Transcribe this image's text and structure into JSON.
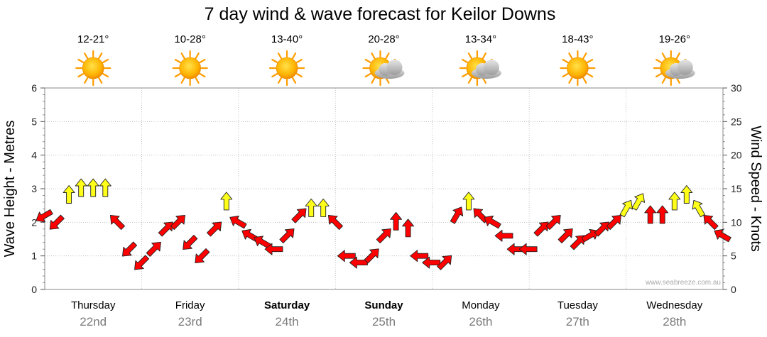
{
  "chart_data": {
    "type": "line",
    "title": "7 day wind & wave forecast for Keilor Downs",
    "ylabel_left": "Wave Height - Metres",
    "ylabel_right": "Wind Speed - Knots",
    "ylim_left": [
      0,
      6
    ],
    "ylim_right": [
      0,
      30
    ],
    "yticks_left": [
      "0",
      "1",
      "2",
      "3",
      "4",
      "5",
      "6"
    ],
    "yticks_right": [
      "0",
      "5",
      "10",
      "15",
      "20",
      "25",
      "30"
    ],
    "grid": true,
    "watermark": "www.seabreeze.com.au",
    "days": [
      {
        "day": "Thursday",
        "date": "22nd",
        "temp": "12-21°",
        "weather": "sunny",
        "bold": false
      },
      {
        "day": "Friday",
        "date": "23rd",
        "temp": "10-28°",
        "weather": "sunny",
        "bold": false
      },
      {
        "day": "Saturday",
        "date": "24th",
        "temp": "13-40°",
        "weather": "sunny",
        "bold": true
      },
      {
        "day": "Sunday",
        "date": "25th",
        "temp": "20-28°",
        "weather": "partly-cloudy",
        "bold": true
      },
      {
        "day": "Monday",
        "date": "26th",
        "temp": "13-34°",
        "weather": "partly-cloudy",
        "bold": false
      },
      {
        "day": "Tuesday",
        "date": "27th",
        "temp": "18-43°",
        "weather": "sunny",
        "bold": false
      },
      {
        "day": "Wednesday",
        "date": "28th",
        "temp": "19-26°",
        "weather": "partly-cloudy",
        "bold": false
      }
    ],
    "wind_series": {
      "name": "Wind speed (knots)",
      "x_hours": [
        0,
        3,
        6,
        9,
        12,
        15,
        18,
        21,
        24,
        27,
        30,
        33,
        36,
        39,
        42,
        45,
        48,
        51,
        54,
        57,
        60,
        63,
        66,
        69,
        72,
        75,
        78,
        81,
        84,
        87,
        90,
        93,
        96,
        99,
        102,
        105,
        108,
        111,
        114,
        117,
        120,
        123,
        126,
        129,
        132,
        135,
        138,
        141,
        144,
        147,
        150,
        153,
        156,
        159,
        162,
        165,
        168
      ],
      "knots": [
        11,
        10,
        14,
        15,
        15,
        15,
        10,
        6,
        4,
        6,
        9,
        10,
        7,
        5,
        9,
        13,
        10,
        8,
        7,
        6,
        8,
        11,
        12,
        12,
        10,
        5,
        4,
        5,
        8,
        10,
        9,
        5,
        4,
        4,
        11,
        13,
        11,
        10,
        8,
        6,
        6,
        9,
        10,
        8,
        7,
        8,
        9,
        10,
        12,
        13,
        11,
        11,
        13,
        14,
        12,
        10,
        8
      ],
      "direction_deg": [
        240,
        225,
        0,
        0,
        0,
        0,
        315,
        225,
        225,
        45,
        45,
        45,
        225,
        225,
        45,
        0,
        300,
        300,
        300,
        270,
        45,
        45,
        0,
        0,
        315,
        270,
        270,
        45,
        45,
        0,
        0,
        270,
        270,
        45,
        30,
        0,
        315,
        300,
        270,
        270,
        270,
        45,
        45,
        45,
        45,
        60,
        45,
        45,
        30,
        30,
        0,
        0,
        0,
        0,
        330,
        315,
        300
      ],
      "colors": {
        "strong": "#ffff1a",
        "moderate": "#ff0000"
      },
      "threshold_knots": 12
    }
  }
}
